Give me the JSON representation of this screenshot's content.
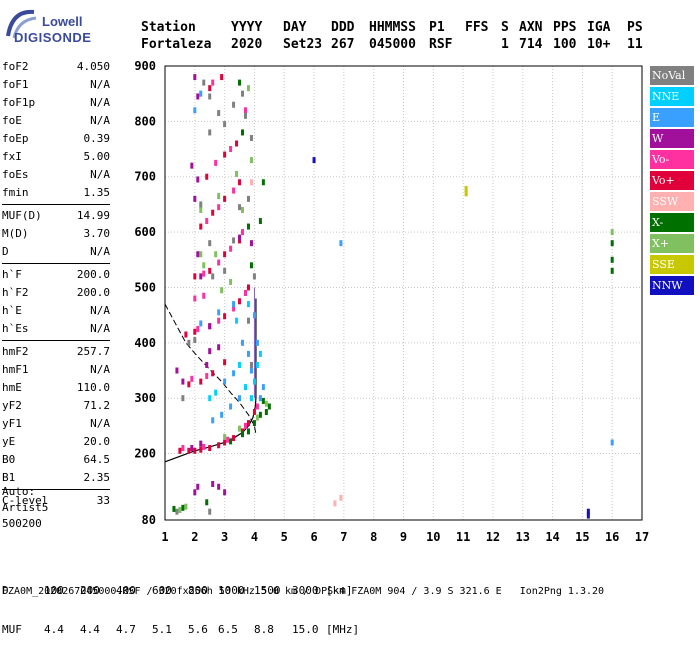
{
  "logo": {
    "line1": "Lowell",
    "line2": "DIGISONDE"
  },
  "header": {
    "row1": [
      "Station",
      "YYYY",
      "DAY",
      "DDD",
      "HHMMSS",
      "P1",
      "FFS",
      "S",
      "AXN",
      "PPS",
      "IGA",
      "PS"
    ],
    "row2": [
      "Fortaleza",
      "2020",
      "Set23",
      "267",
      "045000",
      "RSF",
      "",
      "1",
      "714",
      "100",
      "10+",
      "11"
    ]
  },
  "params": {
    "group1": [
      {
        "label": "foF2",
        "value": "4.050"
      },
      {
        "label": "foF1",
        "value": "N/A"
      },
      {
        "label": "foF1p",
        "value": "N/A"
      },
      {
        "label": "foE",
        "value": "N/A"
      },
      {
        "label": "foEp",
        "value": "0.39"
      },
      {
        "label": "fxI",
        "value": "5.00"
      },
      {
        "label": "foEs",
        "value": "N/A"
      },
      {
        "label": "fmin",
        "value": "1.35"
      }
    ],
    "group2": [
      {
        "label": "MUF(D)",
        "value": "14.99"
      },
      {
        "label": "M(D)",
        "value": "3.70"
      },
      {
        "label": "D",
        "value": "N/A"
      }
    ],
    "group3": [
      {
        "label": "h`F",
        "value": "200.0"
      },
      {
        "label": "h`F2",
        "value": "200.0"
      },
      {
        "label": "h`E",
        "value": "N/A"
      },
      {
        "label": "h`Es",
        "value": "N/A"
      }
    ],
    "group4": [
      {
        "label": "hmF2",
        "value": "257.7"
      },
      {
        "label": "hmF1",
        "value": "N/A"
      },
      {
        "label": "hmE",
        "value": "110.0"
      },
      {
        "label": "yF2",
        "value": "71.2"
      },
      {
        "label": "yF1",
        "value": "N/A"
      },
      {
        "label": "yE",
        "value": "20.0"
      },
      {
        "label": "B0",
        "value": "64.5"
      },
      {
        "label": "B1",
        "value": "2.35"
      }
    ],
    "group5": [
      {
        "label": "C-level",
        "value": "33"
      }
    ]
  },
  "auto": {
    "line1": "Auto:",
    "line2": "Artist5",
    "line3": "500200"
  },
  "legend": [
    {
      "label": "NoVal",
      "color": "#808080"
    },
    {
      "label": "NNE",
      "color": "#00d0ff"
    },
    {
      "label": "E",
      "color": "#3aa0ff"
    },
    {
      "label": "W",
      "color": "#a0109a"
    },
    {
      "label": "Vo-",
      "color": "#ff30a0"
    },
    {
      "label": "Vo+",
      "color": "#e0003a"
    },
    {
      "label": "SSW",
      "color": "#ffb0b0"
    },
    {
      "label": "X-",
      "color": "#007000"
    },
    {
      "label": "X+",
      "color": "#80c060"
    },
    {
      "label": "SSE",
      "color": "#c8c800"
    },
    {
      "label": "NNW",
      "color": "#1010c0"
    }
  ],
  "footer": {
    "d_label": "D",
    "d_values": [
      "100",
      "200",
      "400",
      "600",
      "800",
      "1000",
      "1500",
      "3000",
      "[km]"
    ],
    "muf_label": "MUF",
    "muf_values": [
      "4.4",
      "4.4",
      "4.7",
      "5.1",
      "5.6",
      "6.5",
      "8.8",
      "15.0",
      "[MHz]"
    ],
    "bottom": "FZA0M_2020267045000.RSF / 320fx256h 50 kHz 5.0 km / DPS-4 FZA0M 904 / 3.9 S 321.6 E   Ion2Png 1.3.20"
  },
  "chart_data": {
    "type": "scatter",
    "xlim": [
      1,
      17
    ],
    "ylim": [
      80,
      900
    ],
    "x_ticks": [
      "1",
      "2",
      "3",
      "4",
      "5",
      "6",
      "7",
      "8",
      "9",
      "10",
      "11",
      "12",
      "13",
      "14",
      "15",
      "16",
      "17"
    ],
    "y_ticks": [
      "80",
      "200",
      "300",
      "400",
      "500",
      "600",
      "700",
      "800",
      "900"
    ],
    "grid": true,
    "series": [
      {
        "color": "#e0003a",
        "points": [
          [
            1.5,
            205
          ],
          [
            1.8,
            205
          ],
          [
            2.0,
            205
          ],
          [
            2.2,
            207
          ],
          [
            2.5,
            210
          ],
          [
            2.8,
            215
          ],
          [
            3.0,
            220
          ],
          [
            3.3,
            228
          ],
          [
            3.6,
            240
          ],
          [
            3.8,
            255
          ],
          [
            4.0,
            275
          ],
          [
            1.7,
            415
          ],
          [
            2.0,
            420
          ],
          [
            2.5,
            430
          ],
          [
            3.0,
            448
          ],
          [
            3.5,
            475
          ],
          [
            3.8,
            500
          ],
          [
            1.8,
            325
          ],
          [
            2.2,
            330
          ],
          [
            2.6,
            345
          ],
          [
            3.0,
            365
          ],
          [
            2.0,
            520
          ],
          [
            2.5,
            530
          ],
          [
            3.0,
            560
          ],
          [
            3.5,
            585
          ],
          [
            2.2,
            610
          ],
          [
            2.6,
            635
          ],
          [
            3.0,
            660
          ],
          [
            3.5,
            690
          ],
          [
            2.4,
            700
          ],
          [
            3.0,
            740
          ],
          [
            3.4,
            760
          ],
          [
            2.5,
            860
          ],
          [
            2.9,
            880
          ]
        ]
      },
      {
        "color": "#ff30a0",
        "points": [
          [
            1.6,
            210
          ],
          [
            2.3,
            212
          ],
          [
            3.1,
            225
          ],
          [
            3.7,
            250
          ],
          [
            4.1,
            285
          ],
          [
            2.1,
            425
          ],
          [
            2.8,
            440
          ],
          [
            3.3,
            462
          ],
          [
            3.7,
            490
          ],
          [
            1.9,
            335
          ],
          [
            2.4,
            340
          ],
          [
            2.3,
            525
          ],
          [
            2.8,
            545
          ],
          [
            3.2,
            570
          ],
          [
            2.4,
            620
          ],
          [
            2.8,
            645
          ],
          [
            3.3,
            675
          ],
          [
            2.7,
            725
          ],
          [
            3.2,
            750
          ],
          [
            3.7,
            820
          ],
          [
            2.6,
            870
          ],
          [
            2.0,
            480
          ],
          [
            2.3,
            485
          ],
          [
            3.6,
            600
          ]
        ]
      },
      {
        "color": "#3aa0ff",
        "points": [
          [
            2.6,
            260
          ],
          [
            2.9,
            270
          ],
          [
            3.2,
            285
          ],
          [
            3.5,
            300
          ],
          [
            3.9,
            350
          ],
          [
            4.1,
            400
          ],
          [
            4.2,
            300
          ],
          [
            4.3,
            320
          ],
          [
            3.0,
            330
          ],
          [
            3.3,
            345
          ],
          [
            2.2,
            435
          ],
          [
            2.8,
            455
          ],
          [
            3.3,
            470
          ],
          [
            2.0,
            820
          ],
          [
            2.2,
            850
          ],
          [
            3.6,
            400
          ],
          [
            3.8,
            380
          ],
          [
            4.0,
            450
          ],
          [
            6.9,
            580
          ],
          [
            16.0,
            220
          ]
        ]
      },
      {
        "color": "#00d0ff",
        "points": [
          [
            3.9,
            300
          ],
          [
            4.0,
            330
          ],
          [
            4.1,
            360
          ],
          [
            4.2,
            380
          ],
          [
            3.7,
            320
          ],
          [
            2.5,
            300
          ],
          [
            2.7,
            310
          ],
          [
            3.5,
            360
          ],
          [
            3.4,
            440
          ],
          [
            3.8,
            470
          ]
        ]
      },
      {
        "color": "#007000",
        "points": [
          [
            3.8,
            240
          ],
          [
            4.0,
            255
          ],
          [
            4.2,
            270
          ],
          [
            4.4,
            275
          ],
          [
            4.5,
            285
          ],
          [
            4.3,
            295
          ],
          [
            3.6,
            235
          ],
          [
            3.2,
            222
          ],
          [
            1.3,
            100
          ],
          [
            1.6,
            102
          ],
          [
            2.4,
            112
          ],
          [
            3.9,
            540
          ],
          [
            4.2,
            620
          ],
          [
            4.3,
            690
          ],
          [
            3.8,
            610
          ],
          [
            3.6,
            780
          ],
          [
            3.5,
            870
          ],
          [
            16.0,
            580
          ],
          [
            16.0,
            550
          ],
          [
            16.0,
            530
          ]
        ]
      },
      {
        "color": "#80c060",
        "points": [
          [
            3.0,
            230
          ],
          [
            3.5,
            245
          ],
          [
            4.1,
            265
          ],
          [
            4.4,
            290
          ],
          [
            2.2,
            640
          ],
          [
            2.8,
            665
          ],
          [
            3.4,
            705
          ],
          [
            3.9,
            730
          ],
          [
            2.3,
            540
          ],
          [
            2.7,
            560
          ],
          [
            3.6,
            640
          ],
          [
            2.2,
            560
          ],
          [
            2.9,
            495
          ],
          [
            3.2,
            510
          ],
          [
            1.5,
            98
          ],
          [
            1.7,
            104
          ],
          [
            3.8,
            860
          ],
          [
            16.0,
            600
          ]
        ]
      },
      {
        "color": "#a0109a",
        "points": [
          [
            2.1,
            560
          ],
          [
            2.2,
            520
          ],
          [
            2.0,
            660
          ],
          [
            2.1,
            695
          ],
          [
            2.0,
            880
          ],
          [
            2.1,
            845
          ],
          [
            1.9,
            210
          ],
          [
            2.2,
            218
          ],
          [
            2.4,
            360
          ],
          [
            2.5,
            430
          ],
          [
            1.4,
            350
          ],
          [
            1.6,
            330
          ],
          [
            2.8,
            392
          ],
          [
            2.5,
            385
          ],
          [
            2.6,
            145
          ],
          [
            2.8,
            140
          ],
          [
            3.0,
            130
          ],
          [
            2.1,
            140
          ],
          [
            2.0,
            130
          ],
          [
            1.9,
            720
          ],
          [
            3.5,
            590
          ],
          [
            3.9,
            580
          ]
        ]
      },
      {
        "color": "#808080",
        "points": [
          [
            2.3,
            870
          ],
          [
            2.5,
            845
          ],
          [
            2.8,
            815
          ],
          [
            2.5,
            780
          ],
          [
            3.0,
            795
          ],
          [
            3.3,
            830
          ],
          [
            3.6,
            850
          ],
          [
            3.7,
            810
          ],
          [
            3.9,
            770
          ],
          [
            2.2,
            650
          ],
          [
            2.5,
            580
          ],
          [
            2.6,
            520
          ],
          [
            3.0,
            530
          ],
          [
            3.3,
            585
          ],
          [
            3.5,
            645
          ],
          [
            3.8,
            660
          ],
          [
            3.8,
            440
          ],
          [
            1.8,
            400
          ],
          [
            2.0,
            405
          ],
          [
            1.6,
            300
          ],
          [
            3.9,
            360
          ],
          [
            4.0,
            520
          ],
          [
            1.4,
            95
          ],
          [
            2.5,
            95
          ]
        ]
      },
      {
        "color": "#c8c800",
        "points": [
          [
            11.1,
            670
          ],
          [
            11.1,
            678
          ]
        ]
      },
      {
        "color": "#1010c0",
        "points": [
          [
            6.0,
            730
          ],
          [
            15.2,
            95
          ],
          [
            15.2,
            88
          ]
        ]
      },
      {
        "color": "#ffb0b0",
        "points": [
          [
            6.7,
            110
          ],
          [
            6.9,
            120
          ],
          [
            3.9,
            690
          ]
        ]
      }
    ],
    "profile_solid": [
      [
        1.0,
        185
      ],
      [
        1.5,
        195
      ],
      [
        2.0,
        205
      ],
      [
        2.5,
        212
      ],
      [
        3.0,
        220
      ],
      [
        3.3,
        228
      ],
      [
        3.6,
        238
      ],
      [
        3.8,
        250
      ],
      [
        3.95,
        265
      ],
      [
        4.03,
        285
      ],
      [
        4.05,
        300
      ],
      [
        4.05,
        400
      ],
      [
        4.05,
        480
      ]
    ],
    "profile_dashed": [
      [
        1.0,
        470
      ],
      [
        1.3,
        440
      ],
      [
        1.7,
        400
      ],
      [
        2.1,
        375
      ],
      [
        2.5,
        352
      ],
      [
        2.9,
        330
      ],
      [
        3.2,
        310
      ],
      [
        3.5,
        292
      ],
      [
        3.8,
        270
      ],
      [
        4.0,
        250
      ],
      [
        4.05,
        235
      ]
    ],
    "trace_vertical": [
      [
        4.0,
        300
      ],
      [
        4.0,
        500
      ]
    ]
  }
}
